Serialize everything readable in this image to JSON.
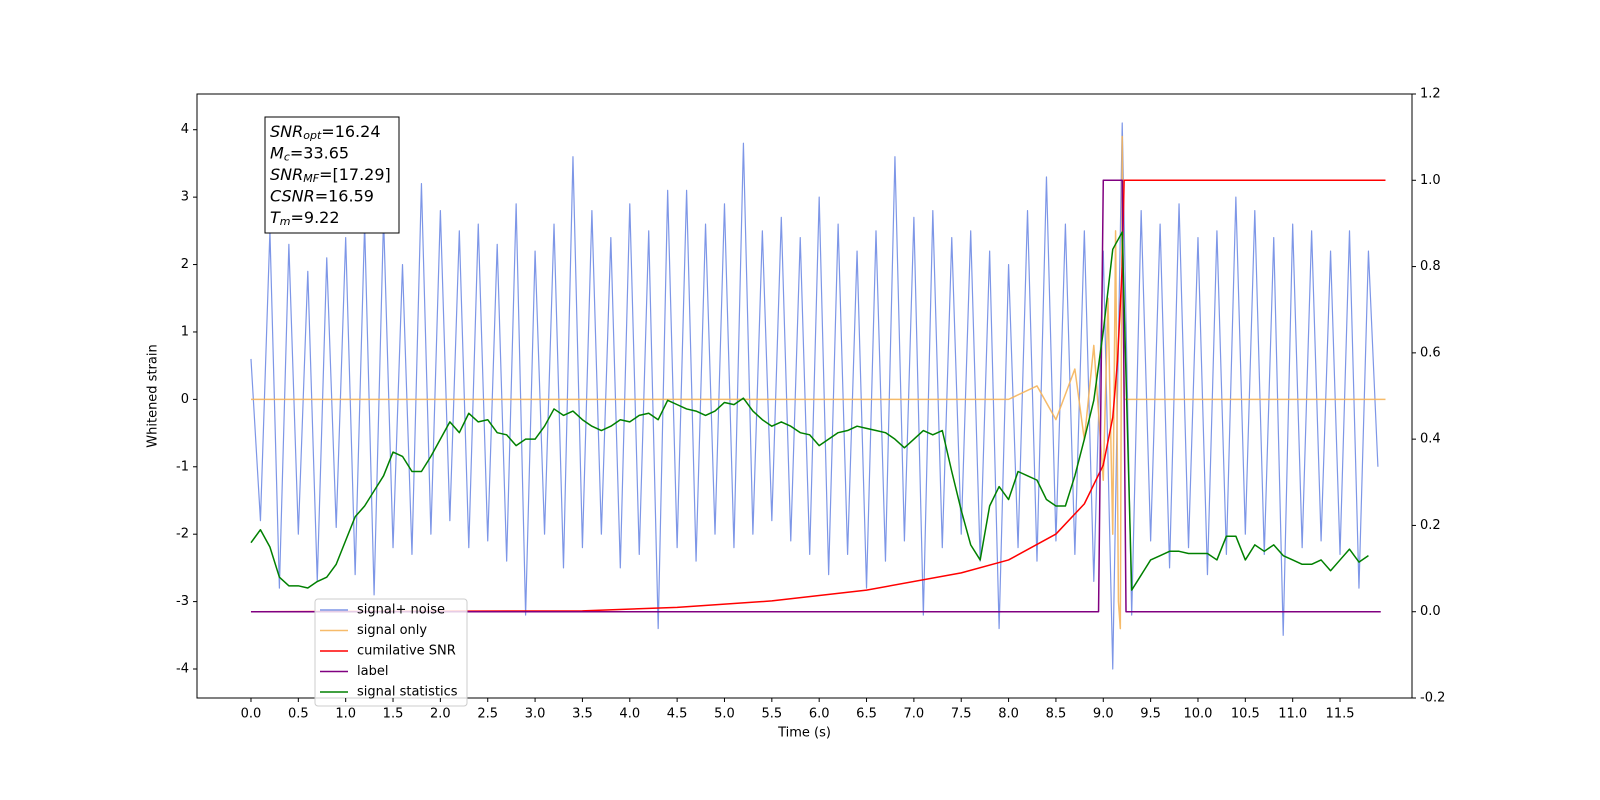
{
  "chart_data": {
    "type": "line",
    "xlabel": "Time (s)",
    "ylabel": "Whitened strain",
    "xlim": [
      -0.57,
      12.26
    ],
    "ylim": [
      -4.43,
      4.53
    ],
    "y2lim": [
      -0.2,
      1.2
    ],
    "xticks": [
      {
        "value": 0,
        "label": "0.0"
      },
      0.5,
      {
        "value": 1,
        "label": "1.0"
      },
      1.5,
      {
        "value": 2,
        "label": "2.0"
      },
      2.5,
      {
        "value": 3,
        "label": "3.0"
      },
      3.5,
      {
        "value": 4,
        "label": "4.0"
      },
      4.5,
      {
        "value": 5,
        "label": "5.0"
      },
      5.5,
      {
        "value": 6,
        "label": "6.0"
      },
      6.5,
      {
        "value": 7,
        "label": "7.0"
      },
      7.5,
      {
        "value": 8,
        "label": "8.0"
      },
      8.5,
      {
        "value": 9,
        "label": "9.0"
      },
      9.5,
      {
        "value": 10,
        "label": "10.0"
      },
      10.5,
      {
        "value": 11,
        "label": "11.0"
      },
      11.5
    ],
    "yticks": [
      -4,
      -3,
      -2,
      -1,
      0,
      1,
      2,
      3,
      4
    ],
    "y2ticks": [
      -0.2,
      {
        "value": 0,
        "label": "0.0"
      },
      0.2,
      0.4,
      0.6,
      0.8,
      {
        "value": 1,
        "label": "1.0"
      },
      1.2
    ],
    "annotations": [
      {
        "symbol": "SNR",
        "subscript": "opt",
        "text": "=16.24"
      },
      {
        "symbol": "M",
        "subscript": "c",
        "text": "=33.65"
      },
      {
        "symbol": "SNR",
        "subscript": "MF",
        "text": "=[17.29]"
      },
      {
        "symbol": "CSNR",
        "text": "=16.59"
      },
      {
        "symbol": "T",
        "subscript": "m",
        "text": "=9.22"
      }
    ],
    "series": [
      {
        "name": "signal+ noise",
        "color": "#7690e6",
        "x": [
          0,
          0.1,
          0.2,
          0.3,
          0.4,
          0.5,
          0.6,
          0.7,
          0.8,
          0.9,
          1,
          1.1,
          1.2,
          1.3,
          1.4,
          1.5,
          1.6,
          1.7,
          1.8,
          1.9,
          2,
          2.1,
          2.2,
          2.3,
          2.4,
          2.5,
          2.6,
          2.7,
          2.8,
          2.9,
          3,
          3.1,
          3.2,
          3.3,
          3.4,
          3.5,
          3.6,
          3.7,
          3.8,
          3.9,
          4,
          4.1,
          4.2,
          4.3,
          4.4,
          4.5,
          4.6,
          4.7,
          4.8,
          4.9,
          5,
          5.1,
          5.2,
          5.3,
          5.4,
          5.5,
          5.6,
          5.7,
          5.8,
          5.9,
          6,
          6.1,
          6.2,
          6.3,
          6.4,
          6.5,
          6.6,
          6.7,
          6.8,
          6.9,
          7,
          7.1,
          7.2,
          7.3,
          7.4,
          7.5,
          7.6,
          7.7,
          7.8,
          7.9,
          8,
          8.1,
          8.2,
          8.3,
          8.4,
          8.5,
          8.6,
          8.7,
          8.8,
          8.9,
          9,
          9.1,
          9.2,
          9.3,
          9.4,
          9.5,
          9.6,
          9.7,
          9.8,
          9.9,
          10,
          10.1,
          10.2,
          10.3,
          10.4,
          10.5,
          10.6,
          10.7,
          10.8,
          10.9,
          11,
          11.1,
          11.2,
          11.3,
          11.4,
          11.5,
          11.6,
          11.7,
          11.8,
          11.9
        ],
        "values": [
          0.6,
          -1.8,
          2.5,
          -2.8,
          2.3,
          -2.0,
          1.9,
          -2.7,
          2.1,
          -1.9,
          2.4,
          -2.6,
          2.6,
          -2.9,
          2.7,
          -2.2,
          2.0,
          -2.3,
          3.2,
          -2.0,
          2.8,
          -1.8,
          2.5,
          -2.2,
          2.6,
          -2.1,
          2.3,
          -2.4,
          2.9,
          -3.2,
          2.2,
          -2.0,
          2.6,
          -2.5,
          3.6,
          -2.2,
          2.8,
          -2.0,
          2.4,
          -2.5,
          2.9,
          -2.3,
          2.5,
          -3.4,
          3.1,
          -2.2,
          3.1,
          -2.4,
          2.6,
          -2.0,
          2.9,
          -2.2,
          3.8,
          -2.0,
          2.5,
          -1.8,
          2.7,
          -2.1,
          2.4,
          -2.3,
          3.0,
          -2.6,
          2.6,
          -2.3,
          2.2,
          -2.8,
          2.5,
          -2.4,
          3.6,
          -2.1,
          2.7,
          -3.2,
          2.8,
          -2.2,
          2.4,
          -2.0,
          2.5,
          -2.4,
          2.2,
          -3.4,
          2.0,
          -2.2,
          2.8,
          -2.4,
          3.3,
          -2.1,
          2.6,
          -2.3,
          2.5,
          -2.7,
          2.2,
          -4.0,
          4.1,
          -3.2,
          2.8,
          -2.1,
          2.6,
          -2.5,
          2.9,
          -2.2,
          2.4,
          -2.6,
          2.5,
          -2.3,
          3.0,
          -2.0,
          2.8,
          -2.3,
          2.4,
          -3.5,
          2.6,
          -2.2,
          2.5,
          -2.1,
          2.2,
          -2.3,
          2.5,
          -2.8,
          2.2,
          -1.0
        ]
      },
      {
        "name": "signal only",
        "color": "#f5b45a",
        "x": [
          0,
          8.0,
          8.3,
          8.5,
          8.7,
          8.8,
          8.9,
          9.0,
          9.05,
          9.1,
          9.13,
          9.16,
          9.18,
          9.2,
          9.22,
          11.98
        ],
        "values": [
          0,
          0,
          0.2,
          -0.3,
          0.45,
          -0.6,
          0.8,
          -1.2,
          1.5,
          -2.0,
          2.5,
          -3.0,
          -3.4,
          3.9,
          0,
          0
        ]
      },
      {
        "name": "cumilative SNR",
        "color": "#ff0000",
        "axis": "y2",
        "x": [
          0,
          3.5,
          4.5,
          5.5,
          6.5,
          7.5,
          8.0,
          8.5,
          8.8,
          9.0,
          9.1,
          9.15,
          9.2,
          9.22,
          11.98
        ],
        "values": [
          0,
          0.002,
          0.01,
          0.025,
          0.05,
          0.09,
          0.12,
          0.18,
          0.25,
          0.34,
          0.45,
          0.58,
          0.8,
          1.0,
          1.0
        ]
      },
      {
        "name": "label",
        "color": "#800080",
        "axis": "y2",
        "x": [
          0,
          8.95,
          9.0,
          9.2,
          9.24,
          11.93
        ],
        "values": [
          0,
          0,
          1,
          1,
          0,
          0
        ]
      },
      {
        "name": "signal statistics",
        "color": "#008000",
        "axis": "y2",
        "x": [
          0,
          0.1,
          0.2,
          0.3,
          0.4,
          0.5,
          0.6,
          0.7,
          0.8,
          0.9,
          1,
          1.1,
          1.2,
          1.3,
          1.4,
          1.5,
          1.6,
          1.7,
          1.8,
          1.9,
          2,
          2.1,
          2.2,
          2.3,
          2.4,
          2.5,
          2.6,
          2.7,
          2.8,
          2.9,
          3,
          3.1,
          3.2,
          3.3,
          3.4,
          3.5,
          3.6,
          3.7,
          3.8,
          3.9,
          4,
          4.1,
          4.2,
          4.3,
          4.4,
          4.5,
          4.6,
          4.7,
          4.8,
          4.9,
          5,
          5.1,
          5.2,
          5.3,
          5.4,
          5.5,
          5.6,
          5.7,
          5.8,
          5.9,
          6,
          6.1,
          6.2,
          6.3,
          6.4,
          6.5,
          6.6,
          6.7,
          6.8,
          6.9,
          7,
          7.1,
          7.2,
          7.3,
          7.4,
          7.5,
          7.6,
          7.7,
          7.8,
          7.9,
          8,
          8.1,
          8.2,
          8.3,
          8.4,
          8.5,
          8.6,
          8.7,
          8.8,
          8.9,
          9,
          9.1,
          9.2,
          9.3,
          9.4,
          9.5,
          9.6,
          9.7,
          9.8,
          9.9,
          10,
          10.1,
          10.2,
          10.3,
          10.4,
          10.5,
          10.6,
          10.7,
          10.8,
          10.9,
          11,
          11.1,
          11.2,
          11.3,
          11.4,
          11.5,
          11.6,
          11.7,
          11.8
        ],
        "values": [
          0.16,
          0.19,
          0.15,
          0.08,
          0.06,
          0.06,
          0.055,
          0.07,
          0.08,
          0.11,
          0.165,
          0.22,
          0.245,
          0.28,
          0.315,
          0.37,
          0.36,
          0.325,
          0.325,
          0.36,
          0.4,
          0.44,
          0.415,
          0.46,
          0.44,
          0.445,
          0.415,
          0.41,
          0.385,
          0.4,
          0.4,
          0.43,
          0.47,
          0.455,
          0.465,
          0.445,
          0.43,
          0.42,
          0.43,
          0.445,
          0.44,
          0.455,
          0.46,
          0.445,
          0.49,
          0.48,
          0.47,
          0.465,
          0.455,
          0.465,
          0.485,
          0.48,
          0.495,
          0.465,
          0.445,
          0.43,
          0.44,
          0.43,
          0.415,
          0.41,
          0.385,
          0.4,
          0.415,
          0.42,
          0.43,
          0.425,
          0.42,
          0.415,
          0.4,
          0.38,
          0.4,
          0.42,
          0.41,
          0.42,
          0.325,
          0.235,
          0.155,
          0.12,
          0.245,
          0.29,
          0.26,
          0.325,
          0.315,
          0.305,
          0.26,
          0.245,
          0.245,
          0.315,
          0.4,
          0.49,
          0.65,
          0.84,
          0.88,
          0.05,
          0.085,
          0.12,
          0.13,
          0.14,
          0.14,
          0.135,
          0.135,
          0.135,
          0.12,
          0.175,
          0.175,
          0.12,
          0.155,
          0.14,
          0.155,
          0.13,
          0.12,
          0.11,
          0.11,
          0.12,
          0.095,
          0.12,
          0.145,
          0.115,
          0.13
        ]
      }
    ]
  }
}
